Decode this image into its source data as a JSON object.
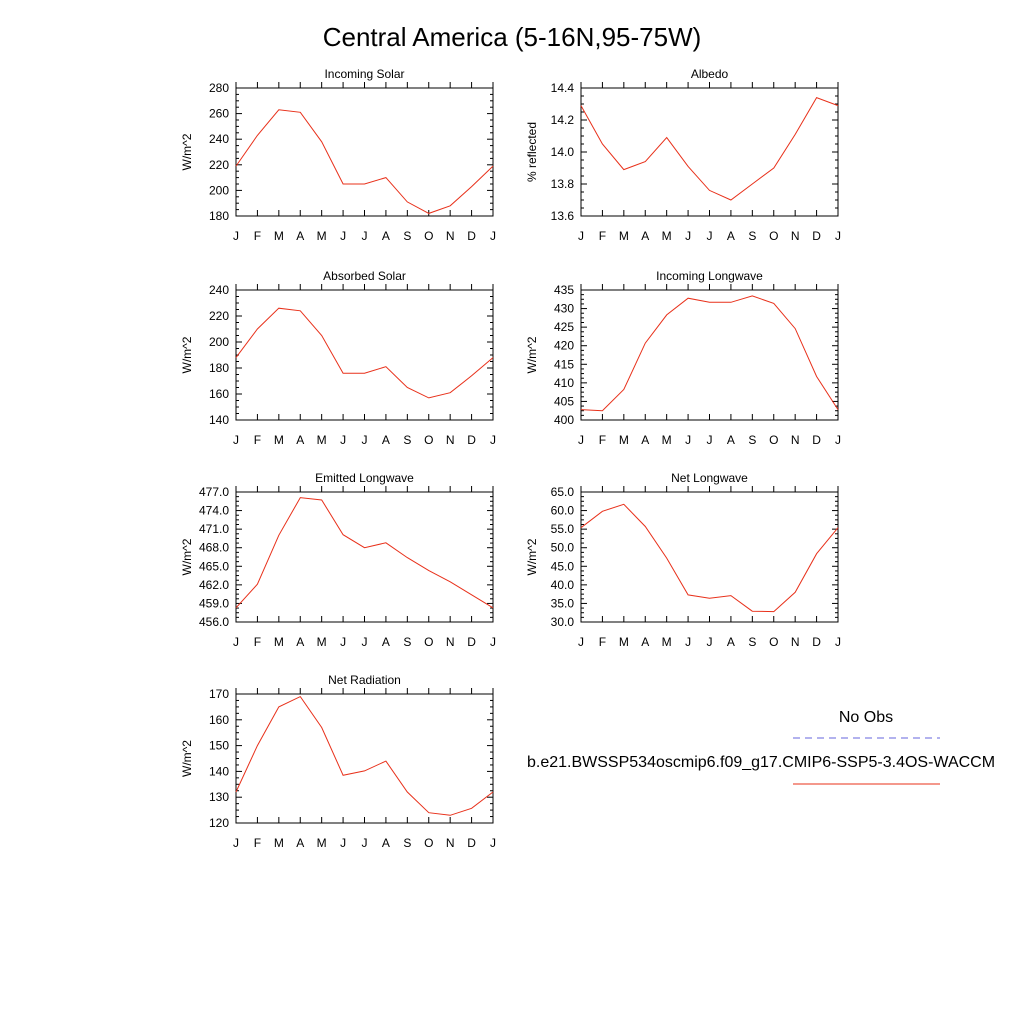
{
  "title": "Central America (5-16N,95-75W)",
  "legend": {
    "obs_label": "No Obs",
    "obs_color": "#6666dd",
    "model_label": "b.e21.BWSSP534oscmip6.f09_g17.CMIP6-SSP5-3.4OS-WACCM",
    "model_color": "#e8301a"
  },
  "chart_data": [
    {
      "type": "line",
      "title": "Incoming Solar",
      "ylabel": "W/m^2",
      "categories": [
        "J",
        "F",
        "M",
        "A",
        "M",
        "J",
        "J",
        "A",
        "S",
        "O",
        "N",
        "D",
        "J"
      ],
      "values": [
        219,
        243,
        263,
        261,
        238,
        205,
        205,
        210,
        191,
        182,
        188,
        203,
        219
      ],
      "ylim": [
        180,
        280
      ],
      "yticks": [
        "180",
        "200",
        "220",
        "240",
        "260",
        "280"
      ]
    },
    {
      "type": "line",
      "title": "Albedo",
      "ylabel": "% reflected",
      "categories": [
        "J",
        "F",
        "M",
        "A",
        "M",
        "J",
        "J",
        "A",
        "S",
        "O",
        "N",
        "D",
        "J"
      ],
      "values": [
        14.29,
        14.05,
        13.89,
        13.94,
        14.09,
        13.91,
        13.76,
        13.7,
        13.8,
        13.9,
        14.11,
        14.34,
        14.29
      ],
      "ylim": [
        13.6,
        14.4
      ],
      "yticks": [
        "13.6",
        "13.8",
        "14.0",
        "14.2",
        "14.4"
      ]
    },
    {
      "type": "line",
      "title": "Absorbed Solar",
      "ylabel": "W/m^2",
      "categories": [
        "J",
        "F",
        "M",
        "A",
        "M",
        "J",
        "J",
        "A",
        "S",
        "O",
        "N",
        "D",
        "J"
      ],
      "values": [
        188,
        210,
        226,
        224,
        205,
        176,
        176,
        181,
        165,
        157,
        161,
        174,
        188
      ],
      "ylim": [
        140,
        240
      ],
      "yticks": [
        "140",
        "160",
        "180",
        "200",
        "220",
        "240"
      ]
    },
    {
      "type": "line",
      "title": "Incoming Longwave",
      "ylabel": "W/m^2",
      "categories": [
        "J",
        "F",
        "M",
        "A",
        "M",
        "J",
        "J",
        "A",
        "S",
        "O",
        "N",
        "D",
        "J"
      ],
      "values": [
        402.8,
        402.5,
        408.2,
        420.7,
        428.3,
        432.8,
        431.7,
        431.7,
        433.4,
        431.4,
        424.6,
        411.7,
        402.8
      ],
      "ylim": [
        400,
        435
      ],
      "yticks": [
        "400",
        "405",
        "410",
        "415",
        "420",
        "425",
        "430",
        "435"
      ]
    },
    {
      "type": "line",
      "title": "Emitted Longwave",
      "ylabel": "W/m^2",
      "categories": [
        "J",
        "F",
        "M",
        "A",
        "M",
        "J",
        "J",
        "A",
        "S",
        "O",
        "N",
        "D",
        "J"
      ],
      "values": [
        458.3,
        462.1,
        470.0,
        476.1,
        475.7,
        470.1,
        468.0,
        468.8,
        466.4,
        464.3,
        462.5,
        460.4,
        458.3
      ],
      "ylim": [
        456,
        477
      ],
      "yticks": [
        "456.0",
        "459.0",
        "462.0",
        "465.0",
        "468.0",
        "471.0",
        "474.0",
        "477.0"
      ]
    },
    {
      "type": "line",
      "title": "Net Longwave",
      "ylabel": "W/m^2",
      "categories": [
        "J",
        "F",
        "M",
        "A",
        "M",
        "J",
        "J",
        "A",
        "S",
        "O",
        "N",
        "D",
        "J"
      ],
      "values": [
        55.4,
        59.8,
        61.7,
        55.7,
        47.2,
        37.3,
        36.4,
        37.1,
        32.9,
        32.8,
        38.0,
        48.4,
        55.4
      ],
      "ylim": [
        30,
        65
      ],
      "yticks": [
        "30.0",
        "35.0",
        "40.0",
        "45.0",
        "50.0",
        "55.0",
        "60.0",
        "65.0"
      ]
    },
    {
      "type": "line",
      "title": "Net Radiation",
      "ylabel": "W/m^2",
      "categories": [
        "J",
        "F",
        "M",
        "A",
        "M",
        "J",
        "J",
        "A",
        "S",
        "O",
        "N",
        "D",
        "J"
      ],
      "values": [
        132,
        150,
        165,
        169,
        157,
        138.5,
        140.2,
        144,
        132,
        124,
        123,
        125.7,
        132
      ],
      "ylim": [
        120,
        170
      ],
      "yticks": [
        "120",
        "130",
        "140",
        "150",
        "160",
        "170"
      ]
    }
  ]
}
